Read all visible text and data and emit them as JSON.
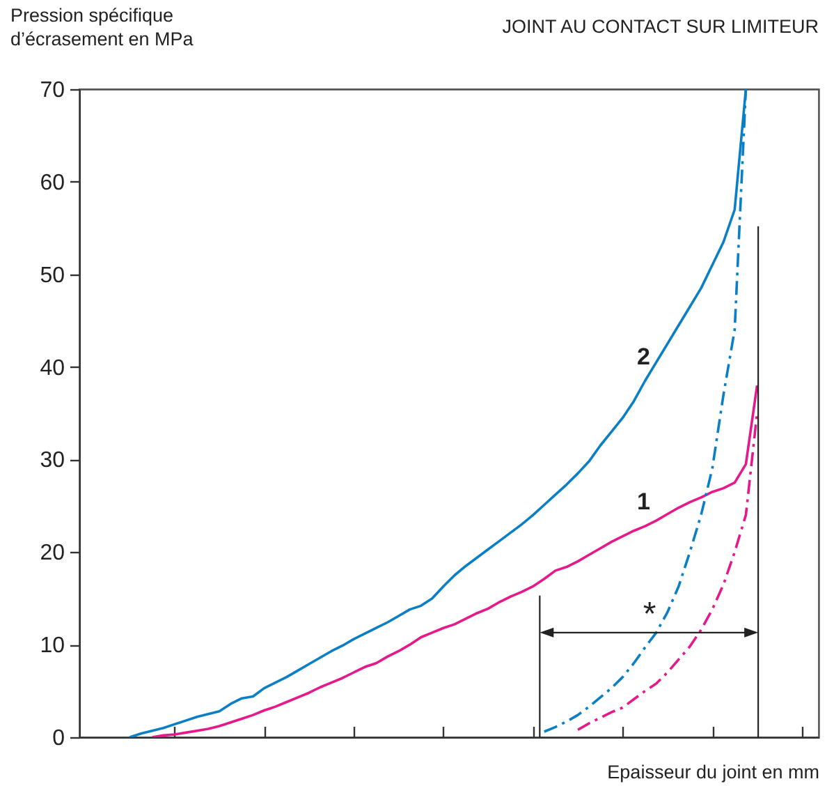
{
  "chart_data": {
    "type": "line",
    "title": "JOINT AU CONTACT SUR LIMITEUR",
    "xlabel": "Epaisseur du joint en mm",
    "ylabel": "Pression spécifique d’écrasement en MPa",
    "categories": [
      null,
      null,
      null,
      null,
      null,
      null,
      null,
      null,
      null,
      null,
      null,
      null,
      null,
      null,
      null,
      null,
      null,
      null,
      null,
      null,
      null,
      null,
      null,
      null,
      null,
      null,
      null,
      null,
      null,
      null,
      null,
      null,
      null,
      null,
      null,
      null,
      null,
      null,
      null,
      null,
      null,
      null,
      null,
      null,
      null,
      null,
      null,
      null,
      null,
      null,
      null,
      null,
      null,
      null,
      null,
      null,
      null,
      null,
      null,
      null,
      null,
      null,
      null,
      null,
      null,
      null
    ],
    "series": [
      {
        "name": "2",
        "color": "#0a7fc5",
        "line_style": "solid",
        "values": [
          null,
          null,
          null,
          null,
          0,
          0.4,
          0.7,
          1.0,
          1.4,
          1.8,
          2.2,
          2.5,
          2.8,
          3.6,
          4.2,
          4.4,
          5.3,
          5.9,
          6.5,
          7.2,
          7.9,
          8.6,
          9.3,
          9.9,
          10.6,
          11.2,
          11.8,
          12.4,
          13.1,
          13.8,
          14.2,
          15.0,
          16.3,
          17.5,
          18.5,
          19.4,
          20.3,
          21.2,
          22.1,
          23.0,
          24.0,
          25.1,
          26.2,
          27.3,
          28.5,
          29.8,
          31.5,
          33.0,
          34.5,
          36.3,
          38.5,
          40.5,
          42.5,
          44.5,
          46.5,
          48.5,
          51.0,
          53.5,
          57,
          70,
          null,
          null,
          null,
          null,
          null,
          null
        ]
      },
      {
        "name": "1",
        "color": "#e5198a",
        "line_style": "solid",
        "values": [
          null,
          null,
          null,
          null,
          null,
          null,
          0,
          0.2,
          0.3,
          0.5,
          0.7,
          0.9,
          1.2,
          1.6,
          2.0,
          2.4,
          2.9,
          3.3,
          3.8,
          4.3,
          4.8,
          5.4,
          5.9,
          6.4,
          7.0,
          7.6,
          8.0,
          8.7,
          9.3,
          10.0,
          10.8,
          11.3,
          11.8,
          12.2,
          12.8,
          13.4,
          13.9,
          14.6,
          15.2,
          15.7,
          16.3,
          17.1,
          18.0,
          18.4,
          19.0,
          19.7,
          20.4,
          21.1,
          21.7,
          22.3,
          22.8,
          23.4,
          24.1,
          24.8,
          25.4,
          25.9,
          26.5,
          26.9,
          27.5,
          29.5,
          38,
          null,
          null,
          null,
          null,
          null
        ]
      },
      {
        "color": "#0a7fc5",
        "line_style": "dashed",
        "values": [
          null,
          null,
          null,
          null,
          null,
          null,
          null,
          null,
          null,
          null,
          null,
          null,
          null,
          null,
          null,
          null,
          null,
          null,
          null,
          null,
          null,
          null,
          null,
          null,
          null,
          null,
          null,
          null,
          null,
          null,
          null,
          null,
          null,
          null,
          null,
          null,
          null,
          null,
          null,
          null,
          null,
          0.6,
          1.1,
          1.7,
          2.4,
          3.3,
          4.3,
          5.3,
          6.5,
          8.0,
          9.7,
          11.3,
          13.5,
          16.3,
          20,
          24,
          29,
          37,
          44,
          70,
          null,
          null,
          null,
          null,
          null,
          null
        ]
      },
      {
        "color": "#e5198a",
        "line_style": "dashed",
        "values": [
          null,
          null,
          null,
          null,
          null,
          null,
          null,
          null,
          null,
          null,
          null,
          null,
          null,
          null,
          null,
          null,
          null,
          null,
          null,
          null,
          null,
          null,
          null,
          null,
          null,
          null,
          null,
          null,
          null,
          null,
          null,
          null,
          null,
          null,
          null,
          null,
          null,
          null,
          null,
          null,
          null,
          null,
          null,
          null,
          0.8,
          1.5,
          2.1,
          2.7,
          3.2,
          4.1,
          5.0,
          5.8,
          7.0,
          8.4,
          9.8,
          11.6,
          13.8,
          16.5,
          20,
          24,
          35,
          null,
          null,
          null,
          null,
          null
        ]
      }
    ],
    "ylim": [
      0,
      70
    ],
    "yticks": [
      0,
      10,
      20,
      30,
      40,
      50,
      60,
      70
    ],
    "grid": false,
    "annotations": [
      "*"
    ]
  }
}
